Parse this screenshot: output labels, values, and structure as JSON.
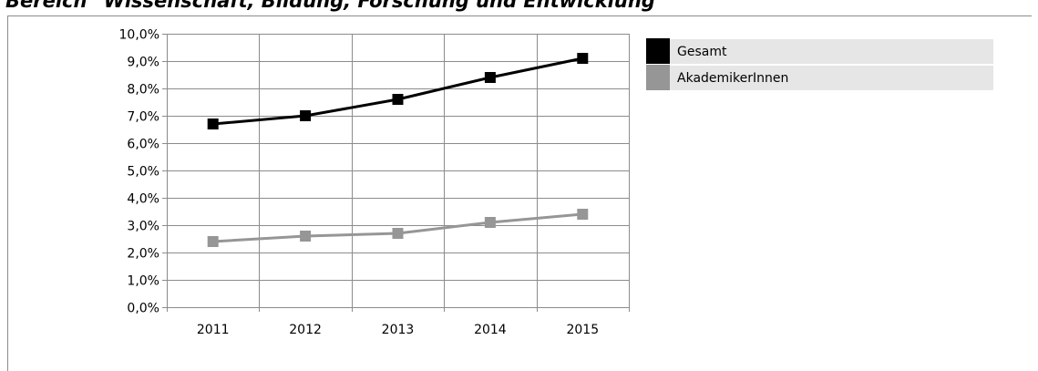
{
  "page": {
    "title": "Bereich \"Wissenschaft, Bildung, Forschung und Entwicklung\""
  },
  "chart_data": {
    "type": "line",
    "title": "Bereich \"Wissenschaft, Bildung, Forschung und Entwicklung\"",
    "xlabel": "",
    "ylabel": "",
    "categories": [
      "2011",
      "2012",
      "2013",
      "2014",
      "2015"
    ],
    "yticks": [
      "0,0%",
      "1,0%",
      "2,0%",
      "3,0%",
      "4,0%",
      "5,0%",
      "6,0%",
      "7,0%",
      "8,0%",
      "9,0%",
      "10,0%"
    ],
    "ylim": [
      0,
      10
    ],
    "grid": true,
    "legend_position": "right",
    "series": [
      {
        "name": "Gesamt",
        "color": "#000000",
        "values": [
          6.7,
          7.0,
          7.6,
          8.4,
          9.1
        ]
      },
      {
        "name": "AkademikerInnen",
        "color": "#969696",
        "values": [
          2.4,
          2.6,
          2.7,
          3.1,
          3.4
        ]
      }
    ]
  }
}
